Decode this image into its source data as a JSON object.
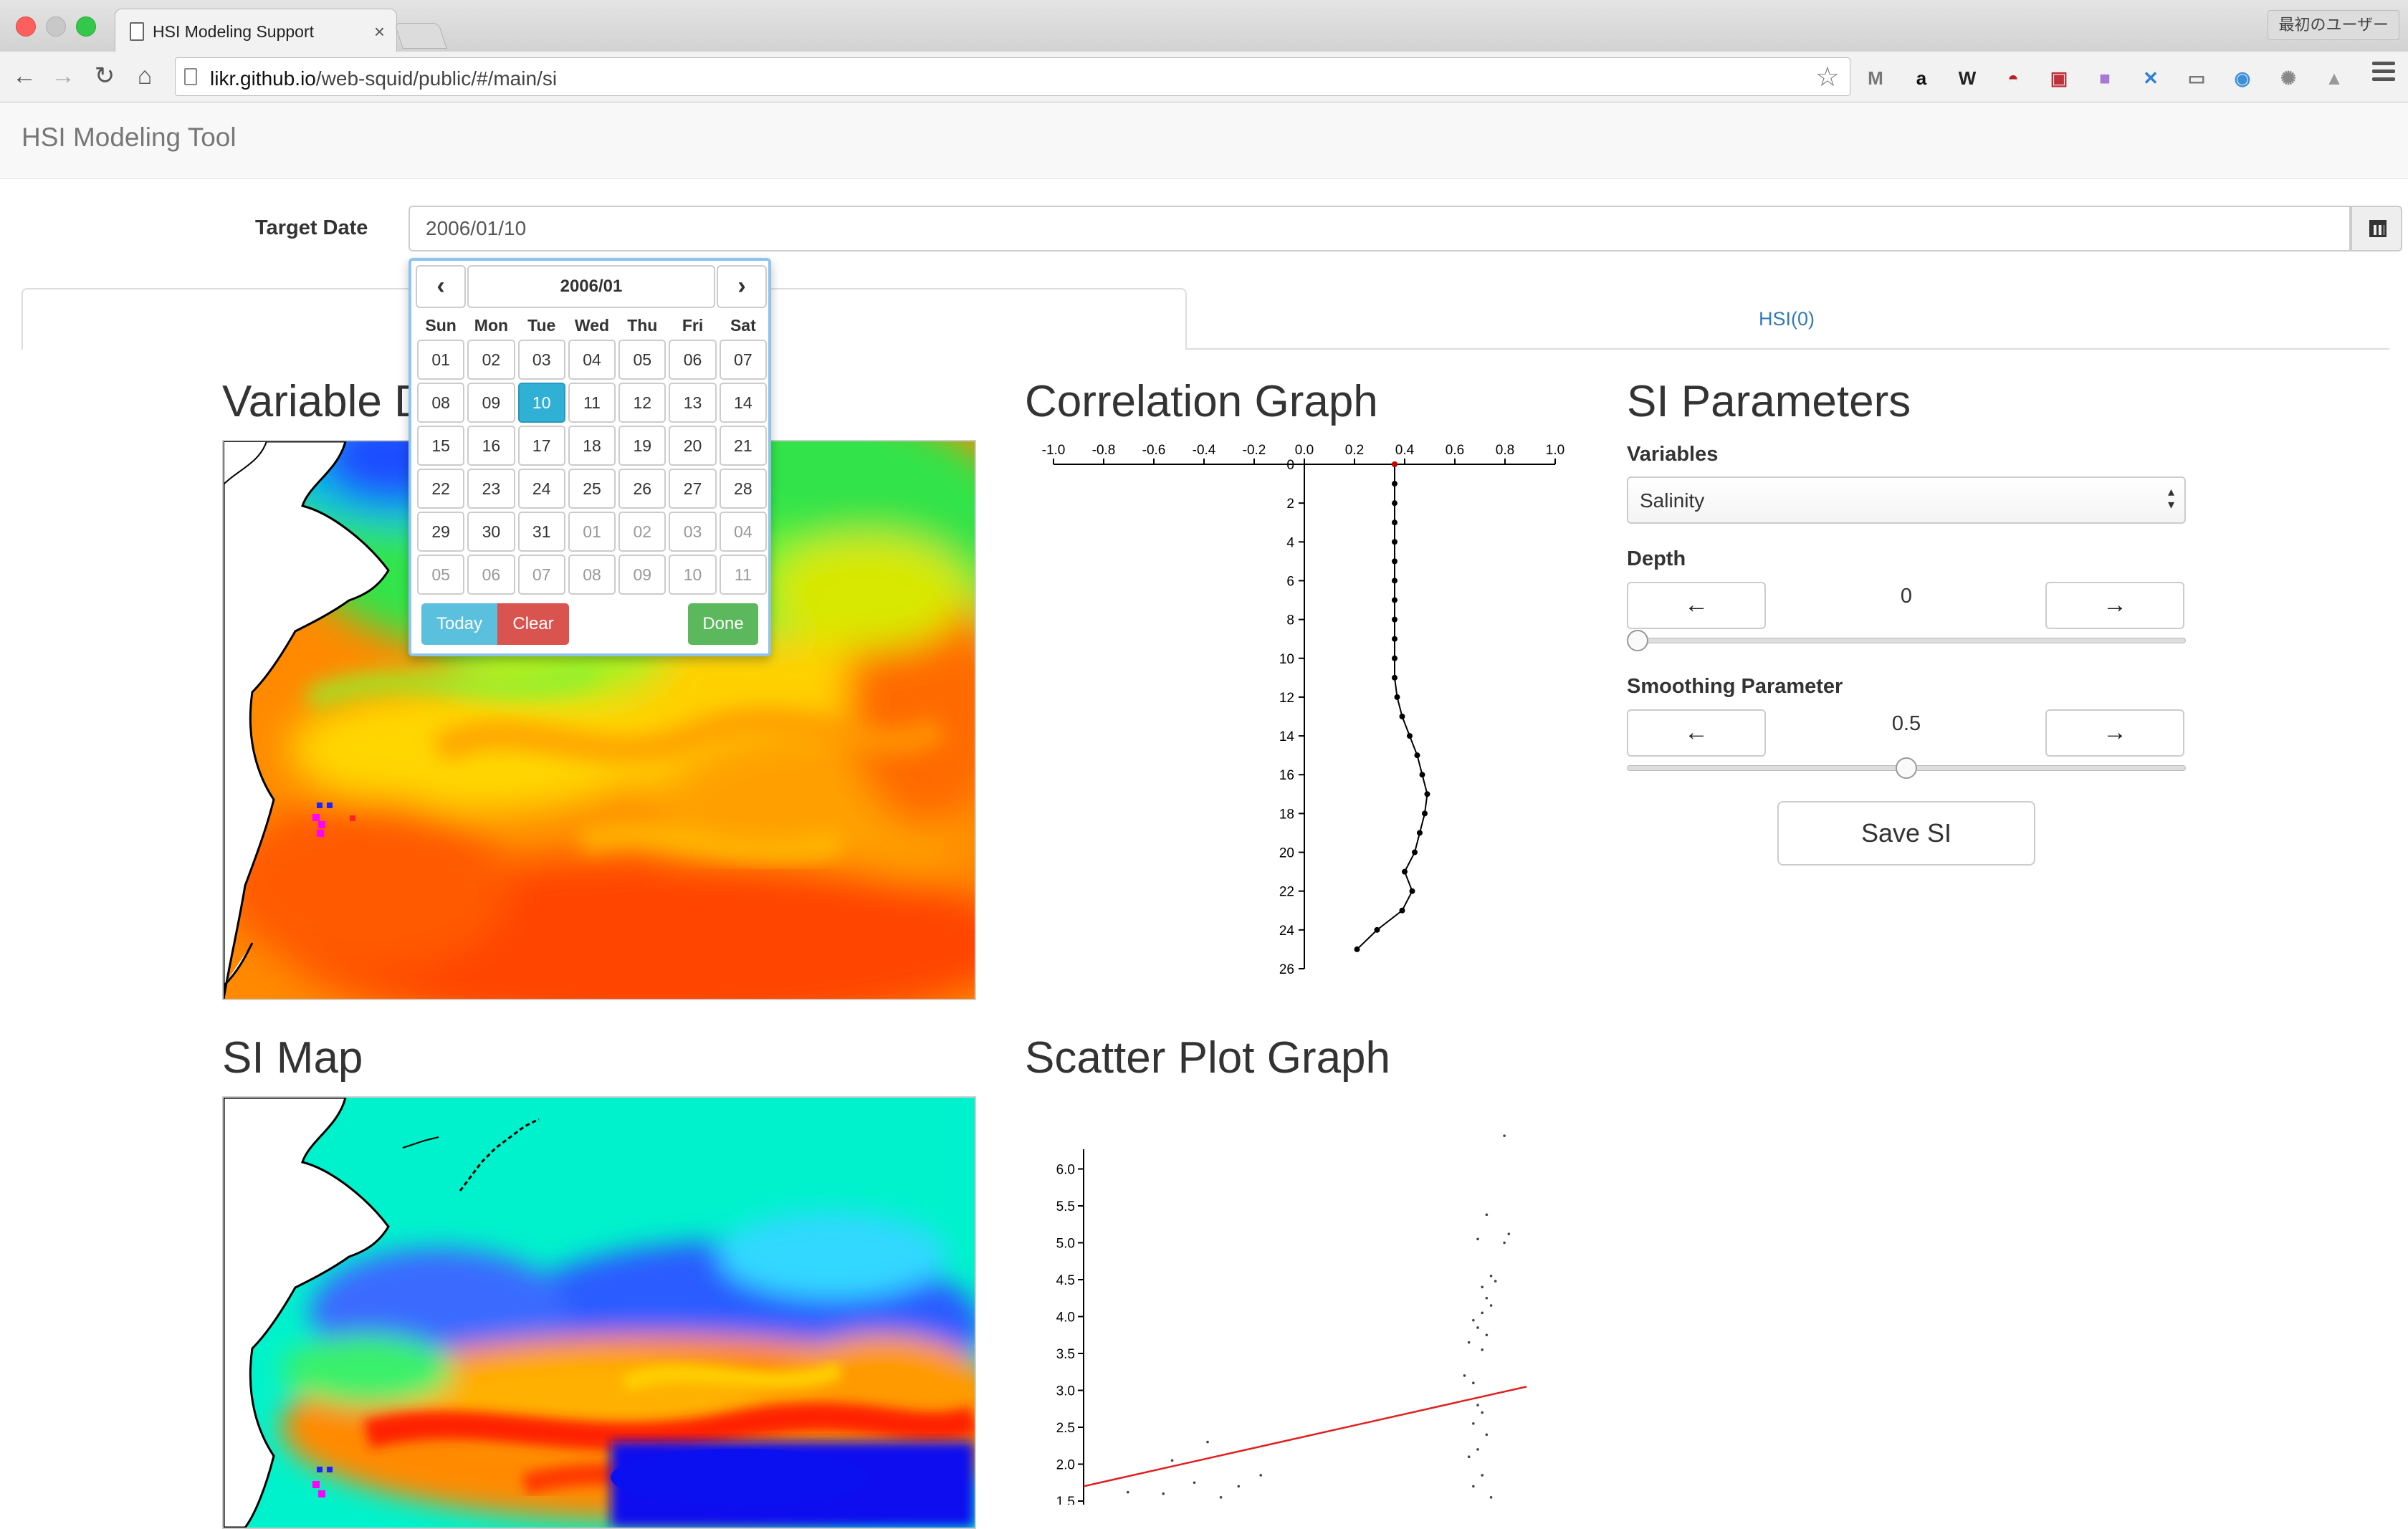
{
  "browser": {
    "tab_title": "HSI Modeling Support",
    "tab_close": "×",
    "url": "likr.github.io/web-squid/public/#/main/si",
    "url_host": "likr.github.io",
    "url_path": "/web-squid/public/#/main/si",
    "profile": "最初のユーザー",
    "nav_back": "←",
    "nav_forward": "→",
    "nav_reload": "↻",
    "nav_home": "⌂",
    "bookmark_star": "☆"
  },
  "extensions": [
    {
      "icon": "gmail-icon",
      "glyph": "M",
      "color": "#777777"
    },
    {
      "icon": "amazon-icon",
      "glyph": "a",
      "color": "#111111"
    },
    {
      "icon": "wikipedia-icon",
      "glyph": "W",
      "color": "#222222"
    },
    {
      "icon": "mask-icon",
      "glyph": "◓",
      "color": "#b22222"
    },
    {
      "icon": "pocket-icon",
      "glyph": "▣",
      "color": "#c0303a"
    },
    {
      "icon": "purple-square-icon",
      "glyph": "■",
      "color": "#a678d8"
    },
    {
      "icon": "flag-icon",
      "glyph": "✕",
      "color": "#2f7fd0"
    },
    {
      "icon": "cast-icon",
      "glyph": "▭",
      "color": "#777777"
    },
    {
      "icon": "camera-icon",
      "glyph": "◉",
      "color": "#3d8fd8"
    },
    {
      "icon": "react-icon",
      "glyph": "✺",
      "color": "#888888"
    },
    {
      "icon": "drive-icon",
      "glyph": "▲",
      "color": "#999999"
    }
  ],
  "app": {
    "brand": "HSI Modeling Tool",
    "target_date_label": "Target Date",
    "target_date_value": "2006/01/10",
    "tab_right_label": "HSI(0)",
    "headings": {
      "variable": "Variable D",
      "correlation": "Correlation Graph",
      "si_params": "SI Parameters",
      "si_map": "SI Map",
      "scatter": "Scatter Plot Graph"
    }
  },
  "datepicker": {
    "prev": "‹",
    "next": "›",
    "month": "2006/01",
    "weekdays": [
      "Sun",
      "Mon",
      "Tue",
      "Wed",
      "Thu",
      "Fri",
      "Sat"
    ],
    "days": [
      {
        "d": "01",
        "m": false
      },
      {
        "d": "02",
        "m": false
      },
      {
        "d": "03",
        "m": false
      },
      {
        "d": "04",
        "m": false
      },
      {
        "d": "05",
        "m": false
      },
      {
        "d": "06",
        "m": false
      },
      {
        "d": "07",
        "m": false
      },
      {
        "d": "08",
        "m": false
      },
      {
        "d": "09",
        "m": false
      },
      {
        "d": "10",
        "m": false,
        "sel": true
      },
      {
        "d": "11",
        "m": false
      },
      {
        "d": "12",
        "m": false
      },
      {
        "d": "13",
        "m": false
      },
      {
        "d": "14",
        "m": false
      },
      {
        "d": "15",
        "m": false
      },
      {
        "d": "16",
        "m": false
      },
      {
        "d": "17",
        "m": false
      },
      {
        "d": "18",
        "m": false
      },
      {
        "d": "19",
        "m": false
      },
      {
        "d": "20",
        "m": false
      },
      {
        "d": "21",
        "m": false
      },
      {
        "d": "22",
        "m": false
      },
      {
        "d": "23",
        "m": false
      },
      {
        "d": "24",
        "m": false
      },
      {
        "d": "25",
        "m": false
      },
      {
        "d": "26",
        "m": false
      },
      {
        "d": "27",
        "m": false
      },
      {
        "d": "28",
        "m": false
      },
      {
        "d": "29",
        "m": false
      },
      {
        "d": "30",
        "m": false
      },
      {
        "d": "31",
        "m": false
      },
      {
        "d": "01",
        "m": true
      },
      {
        "d": "02",
        "m": true
      },
      {
        "d": "03",
        "m": true
      },
      {
        "d": "04",
        "m": true
      },
      {
        "d": "05",
        "m": true
      },
      {
        "d": "06",
        "m": true
      },
      {
        "d": "07",
        "m": true
      },
      {
        "d": "08",
        "m": true
      },
      {
        "d": "09",
        "m": true
      },
      {
        "d": "10",
        "m": true
      },
      {
        "d": "11",
        "m": true
      }
    ],
    "today": "Today",
    "clear": "Clear",
    "done": "Done"
  },
  "si_params": {
    "variables_label": "Variables",
    "variables_value": "Salinity",
    "depth_label": "Depth",
    "depth_value": "0",
    "depth_slider_fraction": 0.0,
    "smoothing_label": "Smoothing Parameter",
    "smoothing_value": "0.5",
    "smoothing_slider_fraction": 0.5,
    "left_arrow": "←",
    "right_arrow": "→",
    "save_label": "Save SI"
  },
  "chart_data": [
    {
      "type": "line",
      "x_ticks": [
        "-1.0",
        "-0.8",
        "-0.6",
        "-0.4",
        "-0.2",
        "0.0",
        "0.2",
        "0.4",
        "0.6",
        "0.8",
        "1.0"
      ],
      "y_ticks": [
        "0",
        "2",
        "4",
        "6",
        "8",
        "10",
        "12",
        "14",
        "16",
        "18",
        "20",
        "22",
        "24",
        "26"
      ],
      "xlim": [
        -1.0,
        1.0
      ],
      "ylim": [
        0,
        26
      ],
      "series": [
        {
          "x": [
            0.36,
            0.36,
            0.36,
            0.36,
            0.36,
            0.36,
            0.36,
            0.36,
            0.36,
            0.36,
            0.36,
            0.36,
            0.37,
            0.39,
            0.42,
            0.45,
            0.47,
            0.49,
            0.48,
            0.46,
            0.44,
            0.4,
            0.43,
            0.39,
            0.29,
            0.21
          ],
          "y": [
            0,
            1,
            2,
            3,
            4,
            5,
            6,
            7,
            8,
            9,
            10,
            11,
            12,
            13,
            14,
            15,
            16,
            17,
            18,
            19,
            20,
            21,
            22,
            23,
            24,
            25
          ]
        }
      ],
      "marker": {
        "x": 0.36,
        "y": 0,
        "color": "#cc0000"
      }
    },
    {
      "type": "scatter",
      "y_ticks": [
        "1.5",
        "2.0",
        "2.5",
        "3.0",
        "3.5",
        "4.0",
        "4.5",
        "5.0",
        "5.5",
        "6.0"
      ],
      "ylim": [
        1.5,
        6.5
      ],
      "xlim": [
        0,
        1
      ],
      "points": [
        [
          0.95,
          6.45
        ],
        [
          0.91,
          5.38
        ],
        [
          0.89,
          5.05
        ],
        [
          0.95,
          5.0
        ],
        [
          0.96,
          5.12
        ],
        [
          0.92,
          4.55
        ],
        [
          0.93,
          4.48
        ],
        [
          0.9,
          4.4
        ],
        [
          0.91,
          4.25
        ],
        [
          0.92,
          4.15
        ],
        [
          0.9,
          4.05
        ],
        [
          0.88,
          3.95
        ],
        [
          0.89,
          3.85
        ],
        [
          0.91,
          3.75
        ],
        [
          0.87,
          3.65
        ],
        [
          0.9,
          3.55
        ],
        [
          0.86,
          3.2
        ],
        [
          0.88,
          3.1
        ],
        [
          0.89,
          2.8
        ],
        [
          0.9,
          2.7
        ],
        [
          0.88,
          2.55
        ],
        [
          0.91,
          2.4
        ],
        [
          0.89,
          2.2
        ],
        [
          0.87,
          2.1
        ],
        [
          0.9,
          1.85
        ],
        [
          0.88,
          1.7
        ],
        [
          0.92,
          1.55
        ],
        [
          0.4,
          1.85
        ],
        [
          0.35,
          1.7
        ],
        [
          0.28,
          2.3
        ],
        [
          0.2,
          2.05
        ],
        [
          0.31,
          1.55
        ],
        [
          0.25,
          1.75
        ],
        [
          0.18,
          1.6
        ],
        [
          0.1,
          1.62
        ]
      ],
      "fit_line": {
        "x": [
          0.0,
          1.0
        ],
        "y": [
          1.7,
          3.05
        ],
        "color": "#e02020"
      }
    }
  ]
}
